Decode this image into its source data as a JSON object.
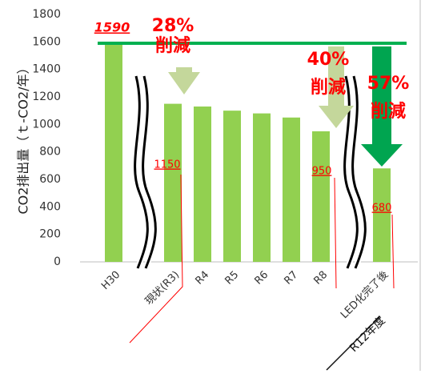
{
  "chart_data": {
    "type": "bar",
    "y_label": "CO2排出量（ｔ-CO2/年）",
    "categories": [
      "H30",
      "現状(R3)",
      "R4",
      "R5",
      "R6",
      "R7",
      "R8",
      "LED化完了後"
    ],
    "category_note": "R12年度",
    "values": [
      1590,
      1150,
      1130,
      1100,
      1080,
      1050,
      950,
      680
    ],
    "show_value_label": [
      true,
      true,
      false,
      false,
      false,
      false,
      true,
      true
    ],
    "color": "#92d050",
    "ylim": [
      0,
      1800
    ],
    "yticks": [
      0,
      200,
      400,
      600,
      800,
      1000,
      1200,
      1400,
      1600,
      1800
    ],
    "reference_line": 1590,
    "annotations": [
      [
        "28%",
        "削減"
      ],
      [
        "40%",
        "削減"
      ],
      [
        "57%",
        "削減"
      ]
    ]
  }
}
